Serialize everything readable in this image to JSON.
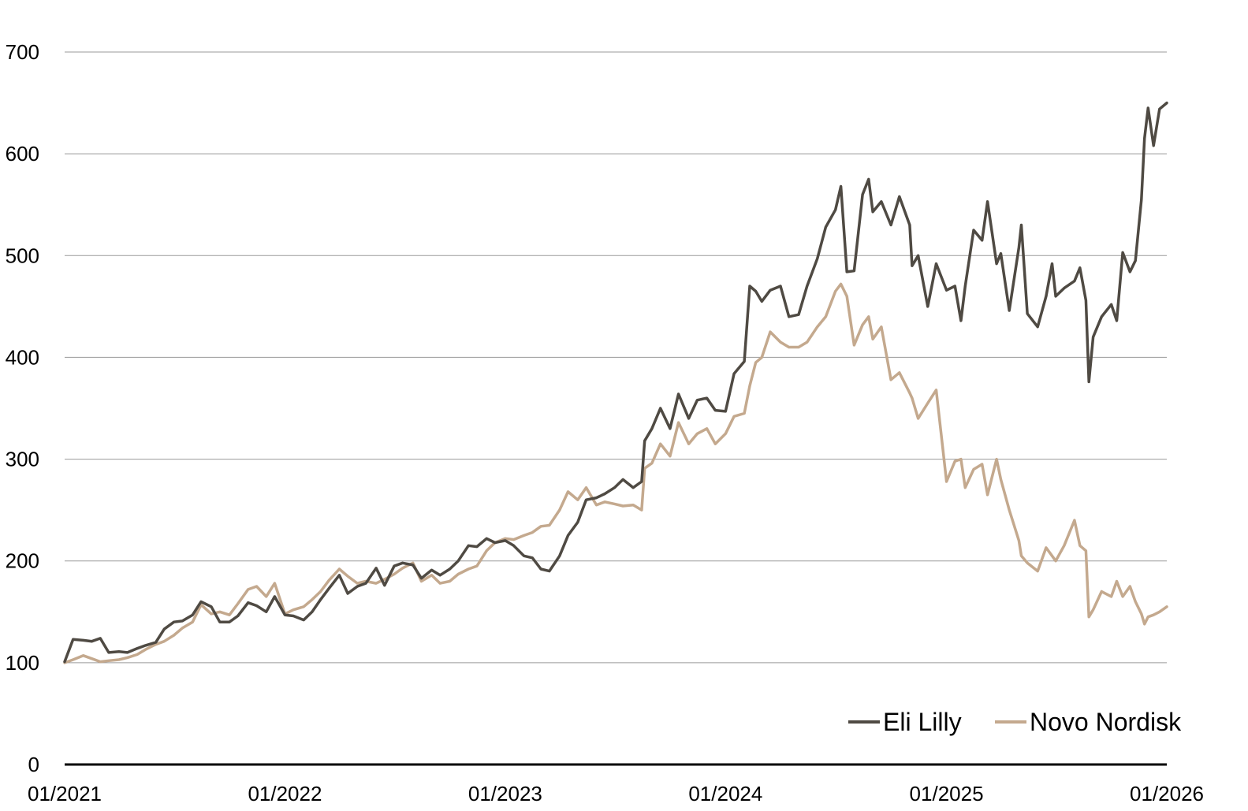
{
  "chart_data": {
    "type": "line",
    "title": "",
    "xlabel": "",
    "ylabel": "",
    "ylim": [
      0,
      700
    ],
    "yticks": [
      "0",
      "100",
      "200",
      "300",
      "400",
      "500",
      "600",
      "700"
    ],
    "xticks": [
      "01/2021",
      "01/2022",
      "01/2023",
      "01/2024",
      "01/2025",
      "01/2026"
    ],
    "grid": "horizontal",
    "legend_position": "bottom-right",
    "x_start": "2021-01",
    "x_end": "2026-01",
    "series": [
      {
        "name": "Eli Lilly",
        "color": "#4f4a43",
        "points": [
          [
            "2021-01-01",
            101
          ],
          [
            "2021-01-15",
            123
          ],
          [
            "2021-02-01",
            122
          ],
          [
            "2021-02-15",
            121
          ],
          [
            "2021-03-01",
            124
          ],
          [
            "2021-03-15",
            110
          ],
          [
            "2021-04-01",
            111
          ],
          [
            "2021-04-15",
            110
          ],
          [
            "2021-05-01",
            114
          ],
          [
            "2021-05-15",
            117
          ],
          [
            "2021-06-01",
            120
          ],
          [
            "2021-06-15",
            133
          ],
          [
            "2021-07-01",
            140
          ],
          [
            "2021-07-15",
            141
          ],
          [
            "2021-08-01",
            147
          ],
          [
            "2021-08-15",
            160
          ],
          [
            "2021-09-01",
            155
          ],
          [
            "2021-09-15",
            140
          ],
          [
            "2021-10-01",
            140
          ],
          [
            "2021-10-15",
            146
          ],
          [
            "2021-11-01",
            159
          ],
          [
            "2021-11-15",
            156
          ],
          [
            "2021-12-01",
            150
          ],
          [
            "2021-12-15",
            165
          ],
          [
            "2022-01-01",
            147
          ],
          [
            "2022-01-15",
            146
          ],
          [
            "2022-02-01",
            142
          ],
          [
            "2022-02-15",
            150
          ],
          [
            "2022-03-01",
            162
          ],
          [
            "2022-03-15",
            173
          ],
          [
            "2022-04-01",
            186
          ],
          [
            "2022-04-15",
            168
          ],
          [
            "2022-05-01",
            175
          ],
          [
            "2022-05-15",
            178
          ],
          [
            "2022-06-01",
            193
          ],
          [
            "2022-06-15",
            176
          ],
          [
            "2022-07-01",
            195
          ],
          [
            "2022-07-15",
            198
          ],
          [
            "2022-08-01",
            196
          ],
          [
            "2022-08-15",
            183
          ],
          [
            "2022-09-01",
            191
          ],
          [
            "2022-09-15",
            186
          ],
          [
            "2022-10-01",
            192
          ],
          [
            "2022-10-15",
            200
          ],
          [
            "2022-11-01",
            215
          ],
          [
            "2022-11-15",
            214
          ],
          [
            "2022-12-01",
            222
          ],
          [
            "2022-12-15",
            218
          ],
          [
            "2023-01-01",
            220
          ],
          [
            "2023-01-15",
            215
          ],
          [
            "2023-02-01",
            205
          ],
          [
            "2023-02-15",
            203
          ],
          [
            "2023-03-01",
            192
          ],
          [
            "2023-03-15",
            190
          ],
          [
            "2023-04-01",
            205
          ],
          [
            "2023-04-15",
            225
          ],
          [
            "2023-05-01",
            238
          ],
          [
            "2023-05-15",
            260
          ],
          [
            "2023-06-01",
            262
          ],
          [
            "2023-06-15",
            266
          ],
          [
            "2023-07-01",
            272
          ],
          [
            "2023-07-15",
            280
          ],
          [
            "2023-08-01",
            272
          ],
          [
            "2023-08-15",
            278
          ],
          [
            "2023-08-20",
            318
          ],
          [
            "2023-09-01",
            330
          ],
          [
            "2023-09-15",
            350
          ],
          [
            "2023-10-01",
            330
          ],
          [
            "2023-10-15",
            364
          ],
          [
            "2023-11-01",
            340
          ],
          [
            "2023-11-15",
            358
          ],
          [
            "2023-12-01",
            360
          ],
          [
            "2023-12-15",
            348
          ],
          [
            "2024-01-01",
            347
          ],
          [
            "2024-01-15",
            384
          ],
          [
            "2024-02-01",
            396
          ],
          [
            "2024-02-10",
            470
          ],
          [
            "2024-02-20",
            465
          ],
          [
            "2024-03-01",
            455
          ],
          [
            "2024-03-15",
            466
          ],
          [
            "2024-04-01",
            470
          ],
          [
            "2024-04-15",
            440
          ],
          [
            "2024-05-01",
            442
          ],
          [
            "2024-05-15",
            470
          ],
          [
            "2024-06-01",
            497
          ],
          [
            "2024-06-15",
            528
          ],
          [
            "2024-07-01",
            545
          ],
          [
            "2024-07-10",
            568
          ],
          [
            "2024-07-20",
            484
          ],
          [
            "2024-08-01",
            485
          ],
          [
            "2024-08-15",
            560
          ],
          [
            "2024-08-25",
            575
          ],
          [
            "2024-09-01",
            543
          ],
          [
            "2024-09-15",
            553
          ],
          [
            "2024-10-01",
            530
          ],
          [
            "2024-10-15",
            558
          ],
          [
            "2024-11-01",
            530
          ],
          [
            "2024-11-05",
            490
          ],
          [
            "2024-11-15",
            500
          ],
          [
            "2024-12-01",
            450
          ],
          [
            "2024-12-15",
            492
          ],
          [
            "2025-01-01",
            466
          ],
          [
            "2025-01-15",
            470
          ],
          [
            "2025-01-25",
            436
          ],
          [
            "2025-02-01",
            470
          ],
          [
            "2025-02-15",
            525
          ],
          [
            "2025-03-01",
            515
          ],
          [
            "2025-03-10",
            553
          ],
          [
            "2025-03-25",
            492
          ],
          [
            "2025-04-01",
            502
          ],
          [
            "2025-04-15",
            446
          ],
          [
            "2025-05-01",
            508
          ],
          [
            "2025-05-05",
            530
          ],
          [
            "2025-05-15",
            443
          ],
          [
            "2025-06-01",
            430
          ],
          [
            "2025-06-15",
            460
          ],
          [
            "2025-06-25",
            492
          ],
          [
            "2025-07-01",
            460
          ],
          [
            "2025-07-15",
            468
          ],
          [
            "2025-08-01",
            475
          ],
          [
            "2025-08-10",
            488
          ],
          [
            "2025-08-20",
            456
          ],
          [
            "2025-08-25",
            376
          ],
          [
            "2025-09-01",
            420
          ],
          [
            "2025-09-15",
            440
          ],
          [
            "2025-10-01",
            452
          ],
          [
            "2025-10-10",
            436
          ],
          [
            "2025-10-20",
            503
          ],
          [
            "2025-11-01",
            484
          ],
          [
            "2025-11-10",
            495
          ],
          [
            "2025-11-20",
            555
          ],
          [
            "2025-11-25",
            615
          ],
          [
            "2025-12-01",
            645
          ],
          [
            "2025-12-10",
            608
          ],
          [
            "2025-12-20",
            644
          ],
          [
            "2026-01-01",
            650
          ]
        ]
      },
      {
        "name": "Novo Nordisk",
        "color": "#c4a98e",
        "points": [
          [
            "2021-01-01",
            100
          ],
          [
            "2021-01-15",
            103
          ],
          [
            "2021-02-01",
            107
          ],
          [
            "2021-02-15",
            104
          ],
          [
            "2021-03-01",
            101
          ],
          [
            "2021-03-15",
            102
          ],
          [
            "2021-04-01",
            103
          ],
          [
            "2021-04-15",
            105
          ],
          [
            "2021-05-01",
            108
          ],
          [
            "2021-05-15",
            113
          ],
          [
            "2021-06-01",
            118
          ],
          [
            "2021-06-15",
            121
          ],
          [
            "2021-07-01",
            127
          ],
          [
            "2021-07-15",
            134
          ],
          [
            "2021-08-01",
            140
          ],
          [
            "2021-08-15",
            157
          ],
          [
            "2021-09-01",
            148
          ],
          [
            "2021-09-15",
            150
          ],
          [
            "2021-10-01",
            147
          ],
          [
            "2021-10-15",
            158
          ],
          [
            "2021-11-01",
            172
          ],
          [
            "2021-11-15",
            175
          ],
          [
            "2021-12-01",
            165
          ],
          [
            "2021-12-15",
            178
          ],
          [
            "2022-01-01",
            148
          ],
          [
            "2022-01-15",
            152
          ],
          [
            "2022-02-01",
            155
          ],
          [
            "2022-02-15",
            162
          ],
          [
            "2022-03-01",
            170
          ],
          [
            "2022-03-15",
            181
          ],
          [
            "2022-04-01",
            192
          ],
          [
            "2022-04-15",
            185
          ],
          [
            "2022-05-01",
            178
          ],
          [
            "2022-05-15",
            180
          ],
          [
            "2022-06-01",
            178
          ],
          [
            "2022-06-15",
            182
          ],
          [
            "2022-07-01",
            187
          ],
          [
            "2022-07-15",
            193
          ],
          [
            "2022-08-01",
            198
          ],
          [
            "2022-08-15",
            180
          ],
          [
            "2022-09-01",
            186
          ],
          [
            "2022-09-15",
            178
          ],
          [
            "2022-10-01",
            180
          ],
          [
            "2022-10-15",
            187
          ],
          [
            "2022-11-01",
            192
          ],
          [
            "2022-11-15",
            195
          ],
          [
            "2022-12-01",
            210
          ],
          [
            "2022-12-15",
            218
          ],
          [
            "2023-01-01",
            222
          ],
          [
            "2023-01-15",
            221
          ],
          [
            "2023-02-01",
            225
          ],
          [
            "2023-02-15",
            228
          ],
          [
            "2023-03-01",
            234
          ],
          [
            "2023-03-15",
            235
          ],
          [
            "2023-04-01",
            250
          ],
          [
            "2023-04-15",
            268
          ],
          [
            "2023-05-01",
            260
          ],
          [
            "2023-05-15",
            272
          ],
          [
            "2023-06-01",
            255
          ],
          [
            "2023-06-15",
            258
          ],
          [
            "2023-07-01",
            256
          ],
          [
            "2023-07-15",
            254
          ],
          [
            "2023-08-01",
            255
          ],
          [
            "2023-08-15",
            250
          ],
          [
            "2023-08-20",
            291
          ],
          [
            "2023-09-01",
            296
          ],
          [
            "2023-09-15",
            315
          ],
          [
            "2023-10-01",
            303
          ],
          [
            "2023-10-15",
            336
          ],
          [
            "2023-11-01",
            315
          ],
          [
            "2023-11-15",
            325
          ],
          [
            "2023-12-01",
            330
          ],
          [
            "2023-12-15",
            315
          ],
          [
            "2024-01-01",
            325
          ],
          [
            "2024-01-15",
            342
          ],
          [
            "2024-02-01",
            345
          ],
          [
            "2024-02-10",
            372
          ],
          [
            "2024-02-20",
            395
          ],
          [
            "2024-03-01",
            400
          ],
          [
            "2024-03-15",
            425
          ],
          [
            "2024-04-01",
            415
          ],
          [
            "2024-04-15",
            410
          ],
          [
            "2024-05-01",
            410
          ],
          [
            "2024-05-15",
            415
          ],
          [
            "2024-06-01",
            430
          ],
          [
            "2024-06-15",
            440
          ],
          [
            "2024-07-01",
            465
          ],
          [
            "2024-07-10",
            472
          ],
          [
            "2024-07-20",
            460
          ],
          [
            "2024-08-01",
            412
          ],
          [
            "2024-08-15",
            432
          ],
          [
            "2024-08-25",
            440
          ],
          [
            "2024-09-01",
            418
          ],
          [
            "2024-09-15",
            430
          ],
          [
            "2024-10-01",
            378
          ],
          [
            "2024-10-15",
            385
          ],
          [
            "2024-11-01",
            365
          ],
          [
            "2024-11-05",
            360
          ],
          [
            "2024-11-15",
            340
          ],
          [
            "2024-12-01",
            355
          ],
          [
            "2024-12-15",
            368
          ],
          [
            "2025-01-01",
            278
          ],
          [
            "2025-01-15",
            298
          ],
          [
            "2025-01-25",
            300
          ],
          [
            "2025-02-01",
            272
          ],
          [
            "2025-02-15",
            290
          ],
          [
            "2025-03-01",
            295
          ],
          [
            "2025-03-10",
            265
          ],
          [
            "2025-03-25",
            300
          ],
          [
            "2025-04-01",
            280
          ],
          [
            "2025-04-15",
            250
          ],
          [
            "2025-05-01",
            220
          ],
          [
            "2025-05-05",
            205
          ],
          [
            "2025-05-15",
            198
          ],
          [
            "2025-06-01",
            190
          ],
          [
            "2025-06-15",
            213
          ],
          [
            "2025-06-25",
            205
          ],
          [
            "2025-07-01",
            200
          ],
          [
            "2025-07-15",
            215
          ],
          [
            "2025-08-01",
            240
          ],
          [
            "2025-08-10",
            215
          ],
          [
            "2025-08-20",
            210
          ],
          [
            "2025-08-25",
            145
          ],
          [
            "2025-09-01",
            152
          ],
          [
            "2025-09-15",
            170
          ],
          [
            "2025-10-01",
            165
          ],
          [
            "2025-10-10",
            180
          ],
          [
            "2025-10-20",
            165
          ],
          [
            "2025-11-01",
            175
          ],
          [
            "2025-11-10",
            160
          ],
          [
            "2025-11-20",
            148
          ],
          [
            "2025-11-25",
            138
          ],
          [
            "2025-12-01",
            145
          ],
          [
            "2025-12-10",
            147
          ],
          [
            "2025-12-20",
            150
          ],
          [
            "2026-01-01",
            155
          ]
        ]
      }
    ]
  }
}
